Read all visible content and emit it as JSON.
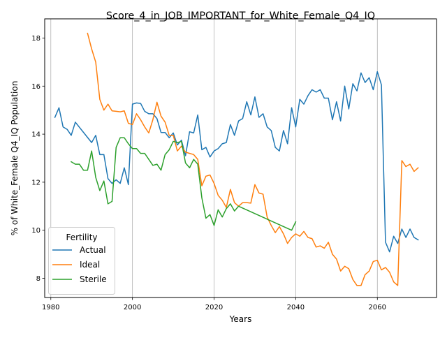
{
  "chart_data": {
    "type": "line",
    "title": "Score_4_in_JOB_IMPORTANT_for_White_Female_Q4_IQ",
    "xlabel": "Years",
    "ylabel": "% of White_Female Q4_IQ Population",
    "xlim": [
      1978.5,
      2074.5
    ],
    "ylim": [
      7.2,
      18.8
    ],
    "xticks": [
      1980,
      2000,
      2020,
      2040,
      2060
    ],
    "yticks": [
      8,
      10,
      12,
      14,
      16,
      18
    ],
    "grid": "x-only",
    "legend": {
      "title": "Fertility",
      "placement": "lower-left"
    },
    "series": [
      {
        "name": "Actual",
        "color": "#1f77b4",
        "points": [
          [
            1981,
            14.7
          ],
          [
            1982,
            15.1
          ],
          [
            1983,
            14.3
          ],
          [
            1984,
            14.2
          ],
          [
            1985,
            13.95
          ],
          [
            1986,
            14.5
          ],
          [
            1990,
            13.65
          ],
          [
            1991,
            13.95
          ],
          [
            1992,
            13.15
          ],
          [
            1993,
            13.15
          ],
          [
            1994,
            12.15
          ],
          [
            1995,
            11.95
          ],
          [
            1996,
            12.1
          ],
          [
            1997,
            11.95
          ],
          [
            1998,
            12.6
          ],
          [
            1999,
            11.9
          ],
          [
            2000,
            15.25
          ],
          [
            2001,
            15.3
          ],
          [
            2002,
            15.28
          ],
          [
            2003,
            14.95
          ],
          [
            2004,
            14.85
          ],
          [
            2005,
            14.85
          ],
          [
            2006,
            14.65
          ],
          [
            2007,
            14.07
          ],
          [
            2008,
            14.07
          ],
          [
            2009,
            13.85
          ],
          [
            2010,
            14.05
          ],
          [
            2011,
            13.55
          ],
          [
            2012,
            13.75
          ],
          [
            2013,
            13.1
          ],
          [
            2014,
            14.1
          ],
          [
            2015,
            14.05
          ],
          [
            2016,
            14.8
          ],
          [
            2017,
            13.35
          ],
          [
            2018,
            13.45
          ],
          [
            2019,
            13.05
          ],
          [
            2020,
            13.3
          ],
          [
            2021,
            13.4
          ],
          [
            2022,
            13.6
          ],
          [
            2023,
            13.65
          ],
          [
            2024,
            14.4
          ],
          [
            2025,
            13.95
          ],
          [
            2026,
            14.55
          ],
          [
            2027,
            14.65
          ],
          [
            2028,
            15.35
          ],
          [
            2029,
            14.8
          ],
          [
            2030,
            15.55
          ],
          [
            2031,
            14.7
          ],
          [
            2032,
            14.85
          ],
          [
            2033,
            14.3
          ],
          [
            2034,
            14.15
          ],
          [
            2035,
            13.45
          ],
          [
            2036,
            13.3
          ],
          [
            2037,
            14.15
          ],
          [
            2038,
            13.6
          ],
          [
            2039,
            15.1
          ],
          [
            2040,
            14.3
          ],
          [
            2041,
            15.45
          ],
          [
            2042,
            15.25
          ],
          [
            2043,
            15.6
          ],
          [
            2044,
            15.85
          ],
          [
            2045,
            15.75
          ],
          [
            2046,
            15.85
          ],
          [
            2047,
            15.5
          ],
          [
            2048,
            15.5
          ],
          [
            2049,
            14.6
          ],
          [
            2050,
            15.35
          ],
          [
            2051,
            14.55
          ],
          [
            2052,
            16.0
          ],
          [
            2053,
            15.05
          ],
          [
            2054,
            16.1
          ],
          [
            2055,
            15.8
          ],
          [
            2056,
            16.55
          ],
          [
            2057,
            16.15
          ],
          [
            2058,
            16.35
          ],
          [
            2059,
            15.85
          ],
          [
            2060,
            16.6
          ],
          [
            2061,
            16.05
          ],
          [
            2062,
            9.5
          ],
          [
            2063,
            9.1
          ],
          [
            2064,
            9.75
          ],
          [
            2065,
            9.45
          ],
          [
            2066,
            10.05
          ],
          [
            2067,
            9.7
          ],
          [
            2068,
            10.05
          ],
          [
            2069,
            9.7
          ],
          [
            2070,
            9.6
          ]
        ]
      },
      {
        "name": "Ideal",
        "color": "#ff7f0e",
        "points": [
          [
            1989,
            18.2
          ],
          [
            1990,
            17.55
          ],
          [
            1991,
            17.0
          ],
          [
            1992,
            15.45
          ],
          [
            1993,
            15.0
          ],
          [
            1994,
            15.25
          ],
          [
            1995,
            14.97
          ],
          [
            1996,
            14.95
          ],
          [
            1997,
            14.93
          ],
          [
            1998,
            14.97
          ],
          [
            1999,
            14.45
          ],
          [
            2000,
            14.4
          ],
          [
            2001,
            14.85
          ],
          [
            2002,
            14.6
          ],
          [
            2003,
            14.3
          ],
          [
            2004,
            14.05
          ],
          [
            2005,
            14.6
          ],
          [
            2006,
            15.33
          ],
          [
            2007,
            14.75
          ],
          [
            2008,
            14.5
          ],
          [
            2009,
            13.95
          ],
          [
            2010,
            13.95
          ],
          [
            2011,
            13.3
          ],
          [
            2012,
            13.5
          ],
          [
            2013,
            13.25
          ],
          [
            2014,
            13.2
          ],
          [
            2015,
            13.15
          ],
          [
            2016,
            12.95
          ],
          [
            2017,
            11.85
          ],
          [
            2018,
            12.25
          ],
          [
            2019,
            12.3
          ],
          [
            2020,
            11.95
          ],
          [
            2021,
            11.45
          ],
          [
            2022,
            11.25
          ],
          [
            2023,
            10.95
          ],
          [
            2024,
            11.7
          ],
          [
            2025,
            11.15
          ],
          [
            2026,
            11.0
          ],
          [
            2027,
            11.15
          ],
          [
            2028,
            11.15
          ],
          [
            2029,
            11.13
          ],
          [
            2030,
            11.9
          ],
          [
            2031,
            11.55
          ],
          [
            2032,
            11.5
          ],
          [
            2033,
            10.55
          ],
          [
            2034,
            10.2
          ],
          [
            2035,
            9.9
          ],
          [
            2036,
            10.15
          ],
          [
            2037,
            9.85
          ],
          [
            2038,
            9.45
          ],
          [
            2039,
            9.7
          ],
          [
            2040,
            9.85
          ],
          [
            2041,
            9.75
          ],
          [
            2042,
            9.95
          ],
          [
            2043,
            9.7
          ],
          [
            2044,
            9.65
          ],
          [
            2045,
            9.3
          ],
          [
            2046,
            9.35
          ],
          [
            2047,
            9.25
          ],
          [
            2048,
            9.5
          ],
          [
            2049,
            9.0
          ],
          [
            2050,
            8.8
          ],
          [
            2051,
            8.3
          ],
          [
            2052,
            8.5
          ],
          [
            2053,
            8.4
          ],
          [
            2054,
            7.95
          ],
          [
            2055,
            7.7
          ],
          [
            2056,
            7.7
          ],
          [
            2057,
            8.15
          ],
          [
            2058,
            8.3
          ],
          [
            2059,
            8.7
          ],
          [
            2060,
            8.75
          ],
          [
            2061,
            8.35
          ],
          [
            2062,
            8.45
          ],
          [
            2063,
            8.25
          ],
          [
            2064,
            7.85
          ],
          [
            2065,
            7.7
          ],
          [
            2066,
            12.9
          ],
          [
            2067,
            12.65
          ],
          [
            2068,
            12.75
          ],
          [
            2069,
            12.45
          ],
          [
            2070,
            12.6
          ]
        ]
      },
      {
        "name": "Sterile",
        "color": "#2ca02c",
        "points": [
          [
            1985,
            12.85
          ],
          [
            1986,
            12.75
          ],
          [
            1987,
            12.75
          ],
          [
            1988,
            12.5
          ],
          [
            1989,
            12.5
          ],
          [
            1990,
            13.3
          ],
          [
            1991,
            12.2
          ],
          [
            1992,
            11.65
          ],
          [
            1993,
            12.05
          ],
          [
            1994,
            11.1
          ],
          [
            1995,
            11.2
          ],
          [
            1996,
            13.45
          ],
          [
            1997,
            13.85
          ],
          [
            1998,
            13.85
          ],
          [
            1999,
            13.6
          ],
          [
            2000,
            13.4
          ],
          [
            2001,
            13.4
          ],
          [
            2002,
            13.2
          ],
          [
            2003,
            13.2
          ],
          [
            2004,
            12.95
          ],
          [
            2005,
            12.7
          ],
          [
            2006,
            12.75
          ],
          [
            2007,
            12.5
          ],
          [
            2008,
            13.15
          ],
          [
            2009,
            13.35
          ],
          [
            2010,
            13.7
          ],
          [
            2011,
            13.65
          ],
          [
            2012,
            13.7
          ],
          [
            2013,
            12.8
          ],
          [
            2014,
            12.6
          ],
          [
            2015,
            12.95
          ],
          [
            2016,
            12.75
          ],
          [
            2017,
            11.35
          ],
          [
            2018,
            10.5
          ],
          [
            2019,
            10.65
          ],
          [
            2020,
            10.2
          ],
          [
            2021,
            10.85
          ],
          [
            2022,
            10.55
          ],
          [
            2023,
            10.9
          ],
          [
            2024,
            11.1
          ],
          [
            2025,
            10.8
          ],
          [
            2026,
            11.0
          ],
          [
            2039,
            10.0
          ],
          [
            2040,
            10.35
          ]
        ]
      }
    ]
  }
}
